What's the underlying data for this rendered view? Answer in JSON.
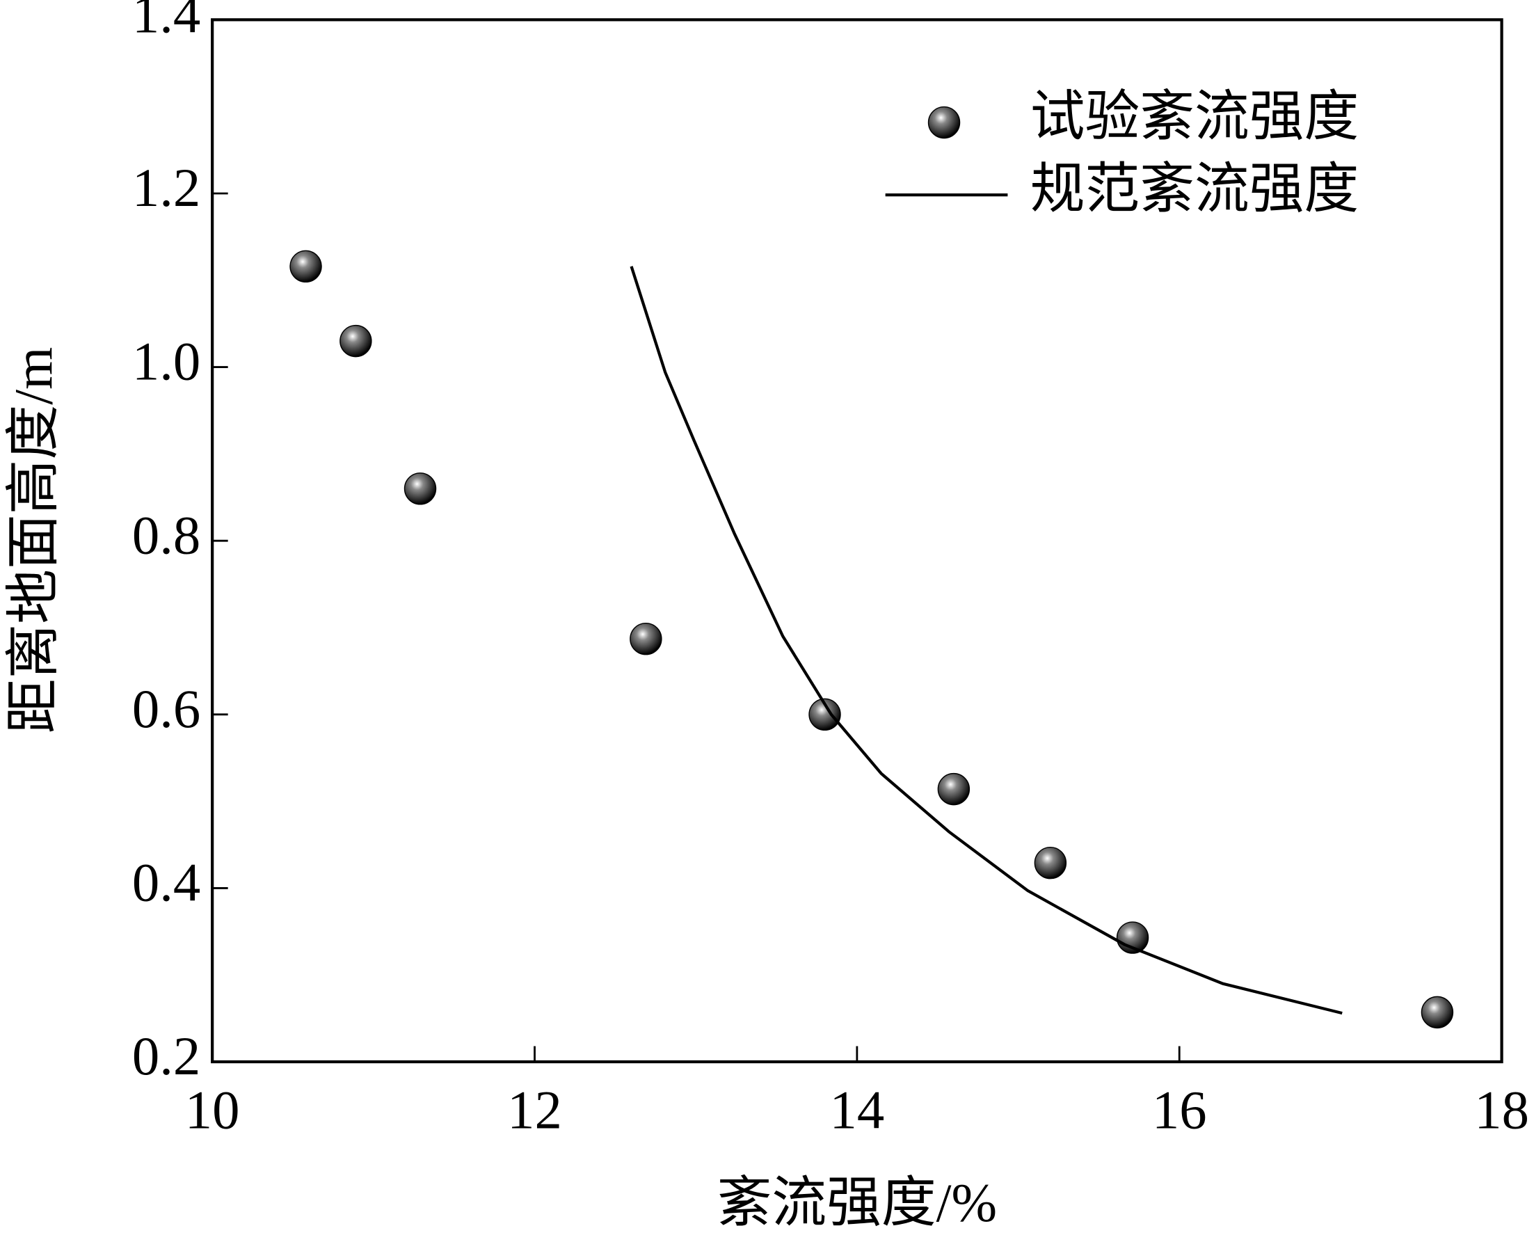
{
  "chart_data": {
    "type": "scatter-line",
    "xlabel": "紊流强度/%",
    "ylabel": "距离地面高度/m",
    "xlim": [
      10,
      18
    ],
    "xticks": [
      10,
      12,
      14,
      16,
      18
    ],
    "ylim": [
      0.2,
      1.4
    ],
    "yticks": [
      0.2,
      0.4,
      0.6,
      0.8,
      {
        "value": 1,
        "label": "1.0"
      },
      1.2,
      1.4
    ],
    "legend": "upper right",
    "series": [
      {
        "name": "试验紊流强度",
        "kind": "scatter",
        "color": "#000000",
        "x": [
          10.58,
          10.89,
          11.29,
          12.69,
          13.8,
          14.6,
          15.2,
          15.71,
          17.6
        ],
        "values": [
          1.116,
          1.03,
          0.86,
          0.687,
          0.6,
          0.514,
          0.429,
          0.343,
          0.257
        ]
      },
      {
        "name": "规范紊流强度",
        "kind": "line",
        "color": "#000000",
        "x": [
          12.6,
          12.81,
          12.99,
          13.24,
          13.54,
          13.84,
          14.15,
          14.57,
          15.06,
          15.66,
          16.27,
          17.01
        ],
        "values": [
          1.116,
          0.994,
          0.915,
          0.808,
          0.69,
          0.6,
          0.532,
          0.465,
          0.397,
          0.335,
          0.29,
          0.256
        ]
      }
    ]
  }
}
